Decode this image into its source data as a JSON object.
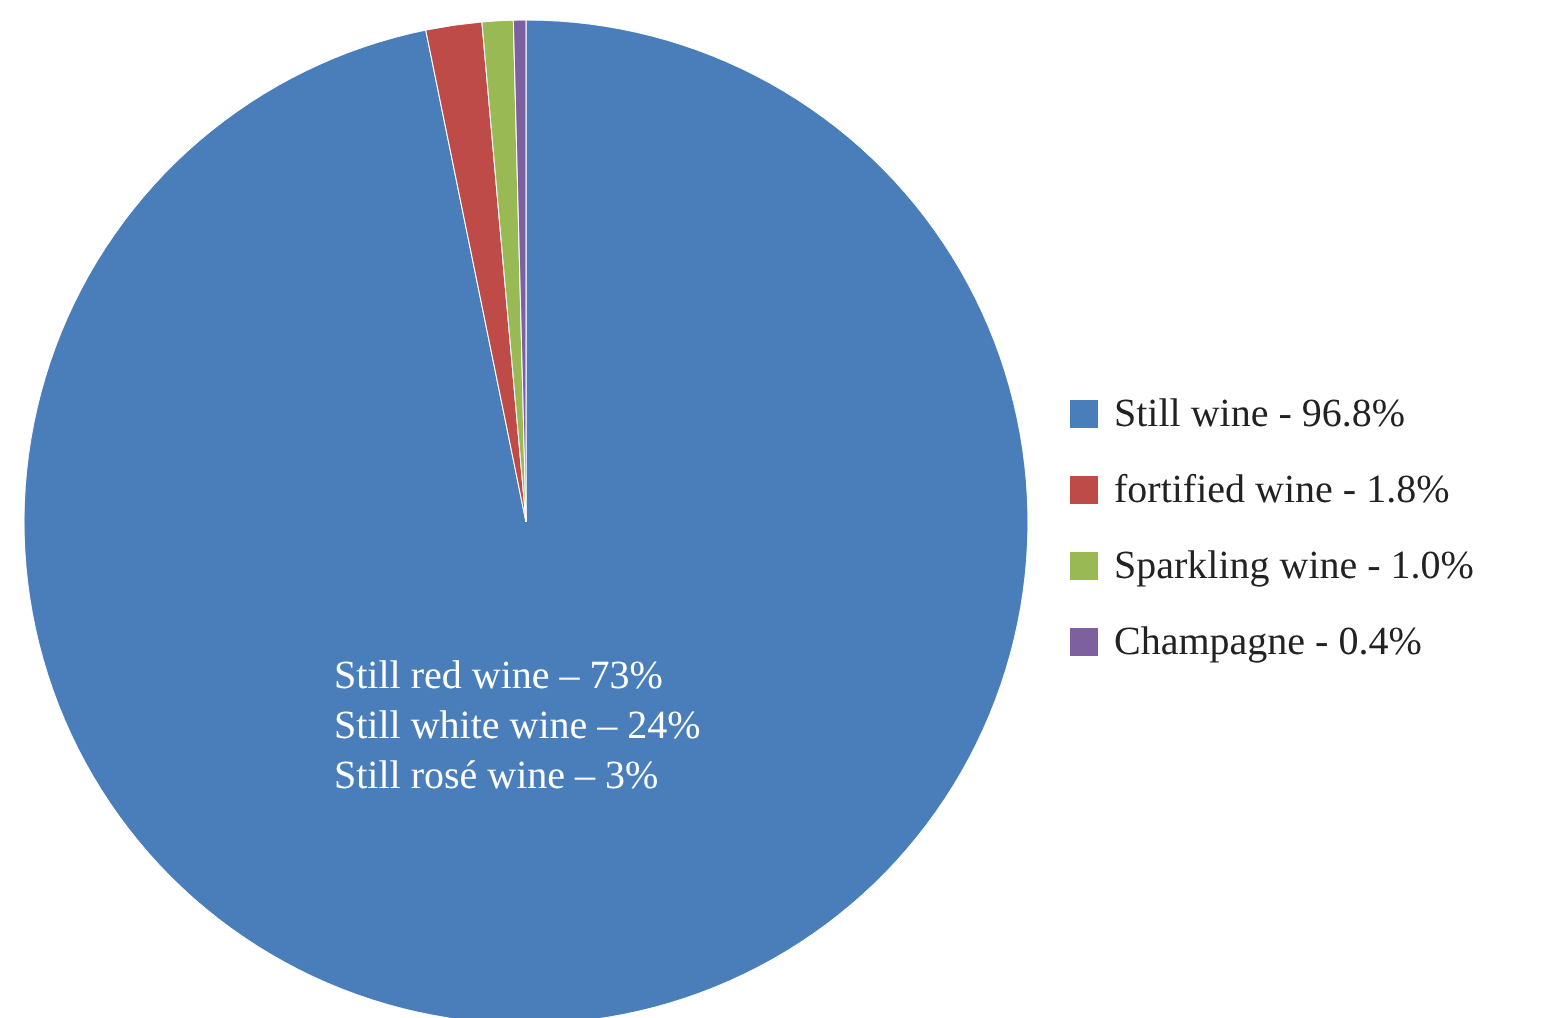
{
  "chart_data": {
    "type": "pie",
    "categories": [
      "Still wine - 96.8%",
      "fortified wine - 1.8%",
      "Sparkling wine - 1.0%",
      "Champagne - 0.4%"
    ],
    "values": [
      96.8,
      1.8,
      1.0,
      0.4
    ],
    "colors": [
      "#4a7ebb",
      "#be4b48",
      "#98b954",
      "#7d60a0"
    ],
    "legend": "right",
    "annotations": [
      "Still red wine – 73%",
      "Still white wine – 24%",
      "Still rosé wine – 3%"
    ]
  }
}
